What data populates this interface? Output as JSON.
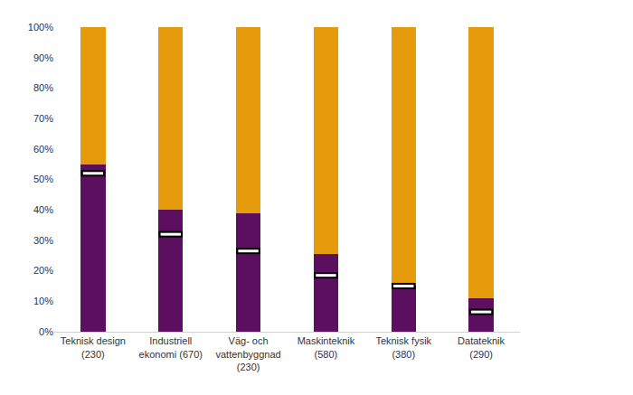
{
  "chart_data": {
    "type": "bar",
    "categories": [
      "Teknisk design (230)",
      "Industriell ekonomi (670)",
      "Väg- och vattenbyggnad (230)",
      "Maskinteknik (580)",
      "Teknisk fysik (380)",
      "Datateknik (290)"
    ],
    "series": [
      {
        "color": "#5c0f5e",
        "values": [
          55,
          40,
          39,
          25.5,
          15,
          11
        ]
      },
      {
        "color": "#e69b0c",
        "values": [
          45,
          60,
          61,
          74.5,
          85,
          89
        ]
      },
      {
        "type": "scatter",
        "marker": "line",
        "color": "#ffffff",
        "values": [
          52,
          32,
          26.5,
          18.5,
          15,
          6.5
        ]
      }
    ],
    "stacked": true,
    "ylim": [
      0,
      100
    ],
    "yticks": [
      {
        "value": 0,
        "label": "0%"
      },
      {
        "value": 10,
        "label": "10%"
      },
      {
        "value": 20,
        "label": "20%"
      },
      {
        "value": 30,
        "label": "30%"
      },
      {
        "value": 40,
        "label": "40%"
      },
      {
        "value": 50,
        "label": "50%"
      },
      {
        "value": 60,
        "label": "60%"
      },
      {
        "value": 70,
        "label": "70%"
      },
      {
        "value": 80,
        "label": "80%"
      },
      {
        "value": 90,
        "label": "90%"
      },
      {
        "value": 100,
        "label": "100%"
      }
    ],
    "grid": false
  }
}
